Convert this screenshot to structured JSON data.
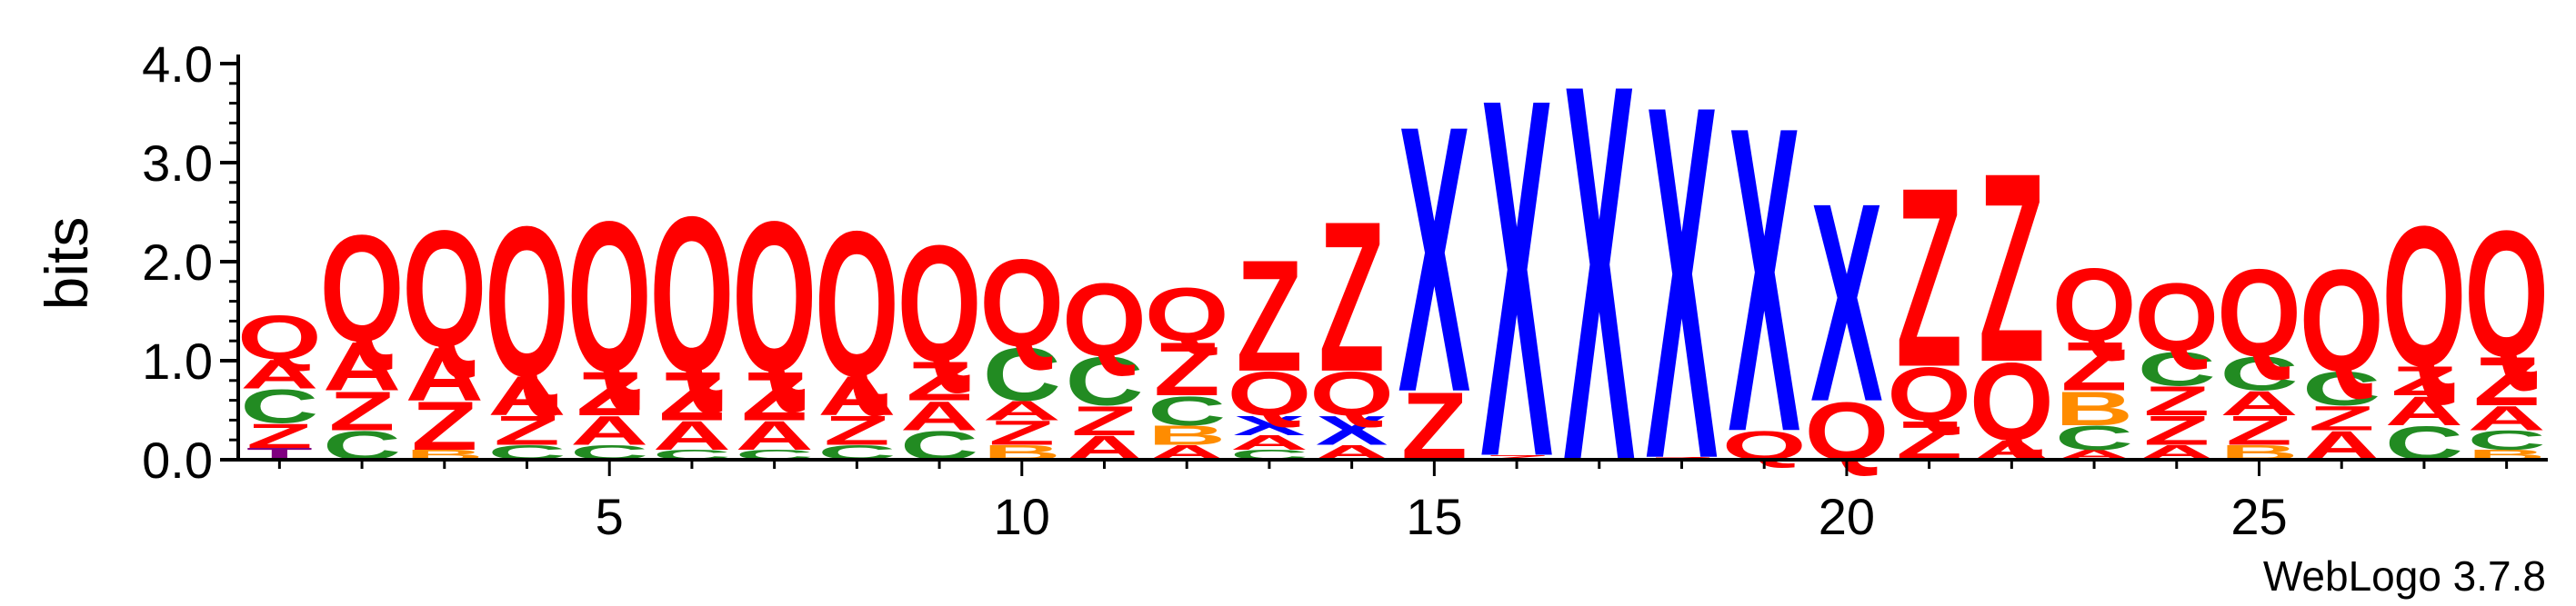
{
  "chart_data": {
    "type": "sequence-logo",
    "ylabel": "bits",
    "ylim": [
      0,
      4.0
    ],
    "y_ticks": [
      "0.0",
      "1.0",
      "2.0",
      "3.0",
      "4.0"
    ],
    "x_ticks": [
      5,
      10,
      15,
      20,
      25
    ],
    "xlim": [
      0.5,
      28.5
    ],
    "footer": "WebLogo 3.7.8",
    "colors": {
      "Q": "#ff0000",
      "A": "#ff0000",
      "Z": "#ff0000",
      "C": "#228b22",
      "X": "#0000ff",
      "B": "#ff8c00",
      "T": "#800080",
      "K": "#ff8c00"
    },
    "positions": [
      {
        "pos": 1,
        "letters": [
          [
            "T",
            0.12
          ],
          [
            "Z",
            0.25
          ],
          [
            "C",
            0.35
          ],
          [
            "A",
            0.3
          ],
          [
            "Q",
            0.45
          ]
        ]
      },
      {
        "pos": 2,
        "letters": [
          [
            "C",
            0.3
          ],
          [
            "Z",
            0.4
          ],
          [
            "A",
            0.5
          ],
          [
            "Q",
            1.1
          ]
        ]
      },
      {
        "pos": 3,
        "letters": [
          [
            "B",
            0.1
          ],
          [
            "Z",
            0.5
          ],
          [
            "A",
            0.55
          ],
          [
            "Q",
            1.2
          ]
        ]
      },
      {
        "pos": 4,
        "letters": [
          [
            "C",
            0.15
          ],
          [
            "Z",
            0.3
          ],
          [
            "A",
            0.4
          ],
          [
            "Q",
            1.55
          ]
        ]
      },
      {
        "pos": 5,
        "letters": [
          [
            "C",
            0.15
          ],
          [
            "A",
            0.3
          ],
          [
            "Z",
            0.45
          ],
          [
            "Q",
            1.55
          ]
        ]
      },
      {
        "pos": 6,
        "letters": [
          [
            "C",
            0.1
          ],
          [
            "A",
            0.3
          ],
          [
            "Z",
            0.5
          ],
          [
            "Q",
            1.6
          ]
        ]
      },
      {
        "pos": 7,
        "letters": [
          [
            "C",
            0.1
          ],
          [
            "A",
            0.3
          ],
          [
            "Z",
            0.5
          ],
          [
            "Q",
            1.55
          ]
        ]
      },
      {
        "pos": 8,
        "letters": [
          [
            "C",
            0.15
          ],
          [
            "Z",
            0.3
          ],
          [
            "A",
            0.4
          ],
          [
            "Q",
            1.5
          ]
        ]
      },
      {
        "pos": 9,
        "letters": [
          [
            "C",
            0.3
          ],
          [
            "A",
            0.3
          ],
          [
            "Z",
            0.4
          ],
          [
            "Q",
            1.2
          ]
        ]
      },
      {
        "pos": 10,
        "letters": [
          [
            "B",
            0.15
          ],
          [
            "Z",
            0.25
          ],
          [
            "A",
            0.2
          ],
          [
            "C",
            0.55
          ],
          [
            "Q",
            0.9
          ]
        ]
      },
      {
        "pos": 11,
        "letters": [
          [
            "A",
            0.25
          ],
          [
            "Z",
            0.3
          ],
          [
            "C",
            0.5
          ],
          [
            "Q",
            0.75
          ]
        ]
      },
      {
        "pos": 12,
        "letters": [
          [
            "A",
            0.15
          ],
          [
            "B",
            0.2
          ],
          [
            "C",
            0.3
          ],
          [
            "Z",
            0.55
          ],
          [
            "Q",
            0.55
          ]
        ]
      },
      {
        "pos": 13,
        "letters": [
          [
            "C",
            0.1
          ],
          [
            "A",
            0.15
          ],
          [
            "X",
            0.2
          ],
          [
            "Q",
            0.45
          ],
          [
            "Z",
            1.15
          ]
        ]
      },
      {
        "pos": 14,
        "letters": [
          [
            "A",
            0.15
          ],
          [
            "X",
            0.3
          ],
          [
            "Q",
            0.45
          ],
          [
            "Z",
            1.55
          ]
        ]
      },
      {
        "pos": 15,
        "letters": [
          [
            "Z",
            0.7
          ],
          [
            "X",
            2.75
          ]
        ]
      },
      {
        "pos": 16,
        "letters": [
          [
            "Z",
            0.05
          ],
          [
            "X",
            3.7
          ]
        ]
      },
      {
        "pos": 17,
        "letters": [
          [
            "X",
            3.9
          ]
        ]
      },
      {
        "pos": 18,
        "letters": [
          [
            "Z",
            0.03
          ],
          [
            "X",
            3.65
          ]
        ]
      },
      {
        "pos": 19,
        "letters": [
          [
            "Q",
            0.3
          ],
          [
            "X",
            3.15
          ]
        ]
      },
      {
        "pos": 20,
        "letters": [
          [
            "Q",
            0.6
          ],
          [
            "X",
            2.05
          ]
        ]
      },
      {
        "pos": 21,
        "letters": [
          [
            "Z",
            0.4
          ],
          [
            "Q",
            0.55
          ],
          [
            "Z",
            1.85
          ]
        ]
      },
      {
        "pos": 22,
        "letters": [
          [
            "A",
            0.2
          ],
          [
            "Q",
            0.8
          ],
          [
            "Z",
            1.95
          ]
        ]
      },
      {
        "pos": 23,
        "letters": [
          [
            "A",
            0.1
          ],
          [
            "C",
            0.25
          ],
          [
            "B",
            0.35
          ],
          [
            "Z",
            0.5
          ],
          [
            "Q",
            0.75
          ]
        ]
      },
      {
        "pos": 24,
        "letters": [
          [
            "A",
            0.15
          ],
          [
            "Z",
            0.3
          ],
          [
            "Z",
            0.3
          ],
          [
            "C",
            0.35
          ],
          [
            "Q",
            0.7
          ]
        ]
      },
      {
        "pos": 25,
        "letters": [
          [
            "B",
            0.15
          ],
          [
            "Z",
            0.3
          ],
          [
            "A",
            0.25
          ],
          [
            "C",
            0.35
          ],
          [
            "Q",
            0.9
          ]
        ]
      },
      {
        "pos": 26,
        "letters": [
          [
            "A",
            0.3
          ],
          [
            "Z",
            0.25
          ],
          [
            "C",
            0.35
          ],
          [
            "Q",
            1.05
          ]
        ]
      },
      {
        "pos": 27,
        "letters": [
          [
            "C",
            0.35
          ],
          [
            "A",
            0.3
          ],
          [
            "Z",
            0.3
          ],
          [
            "Q",
            1.45
          ]
        ]
      },
      {
        "pos": 28,
        "letters": [
          [
            "B",
            0.1
          ],
          [
            "C",
            0.2
          ],
          [
            "A",
            0.25
          ],
          [
            "Z",
            0.5
          ],
          [
            "Q",
            1.3
          ]
        ]
      }
    ]
  }
}
